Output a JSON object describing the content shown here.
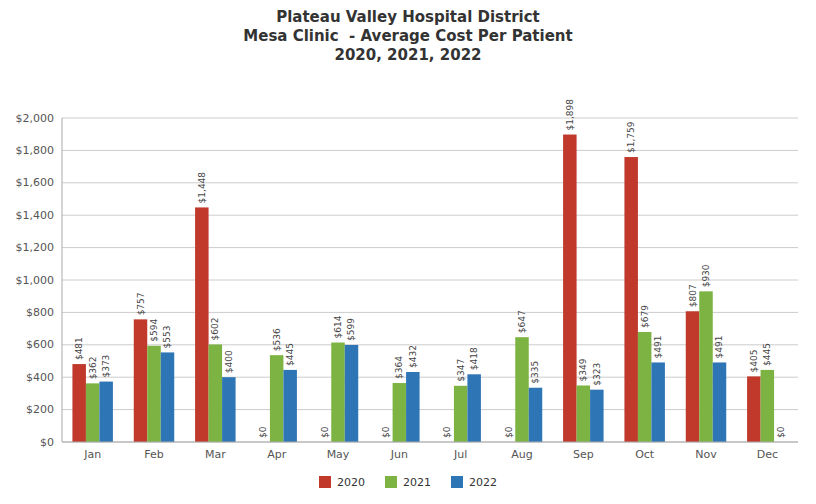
{
  "chart_data": {
    "type": "bar",
    "title": "Plateau Valley Hospital District\nMesa Clinic  - Average Cost Per Patient\n2020, 2021, 2022",
    "categories": [
      "Jan",
      "Feb",
      "Mar",
      "Apr",
      "May",
      "Jun",
      "Jul",
      "Aug",
      "Sep",
      "Oct",
      "Nov",
      "Dec"
    ],
    "series": [
      {
        "name": "2020",
        "color": "#C0392B",
        "values": [
          481,
          757,
          1448,
          0,
          0,
          0,
          0,
          0,
          1898,
          1759,
          807,
          405
        ],
        "value_labels": [
          "$481",
          "$757",
          "$1,448",
          "$0",
          "$0",
          "$0",
          "$0",
          "$0",
          "$1,898",
          "$1,759",
          "$807",
          "$405"
        ]
      },
      {
        "name": "2021",
        "color": "#7CB342",
        "values": [
          362,
          594,
          602,
          536,
          614,
          364,
          347,
          647,
          349,
          679,
          930,
          445
        ],
        "value_labels": [
          "$362",
          "$594",
          "$602",
          "$536",
          "$614",
          "$364",
          "$347",
          "$647",
          "$349",
          "$679",
          "$930",
          "$445"
        ]
      },
      {
        "name": "2022",
        "color": "#2E75B6",
        "values": [
          373,
          553,
          400,
          445,
          599,
          432,
          418,
          335,
          323,
          491,
          491,
          0
        ],
        "value_labels": [
          "$373",
          "$553",
          "$400",
          "$445",
          "$599",
          "$432",
          "$418",
          "$335",
          "$323",
          "$491",
          "$491",
          "$0"
        ]
      }
    ],
    "ylim": [
      0,
      2000
    ],
    "yticks": [
      {
        "value": 0,
        "label": "$0"
      },
      {
        "value": 200,
        "label": "$200"
      },
      {
        "value": 400,
        "label": "$400"
      },
      {
        "value": 600,
        "label": "$600"
      },
      {
        "value": 800,
        "label": "$800"
      },
      {
        "value": 1000,
        "label": "$1,000"
      },
      {
        "value": 1200,
        "label": "$1,200"
      },
      {
        "value": 1400,
        "label": "$1,400"
      },
      {
        "value": 1600,
        "label": "$1,600"
      },
      {
        "value": 1800,
        "label": "$1,800"
      },
      {
        "value": 2000,
        "label": "$2,000"
      }
    ],
    "grid": true,
    "legend": "bottom",
    "data_labels": true
  }
}
